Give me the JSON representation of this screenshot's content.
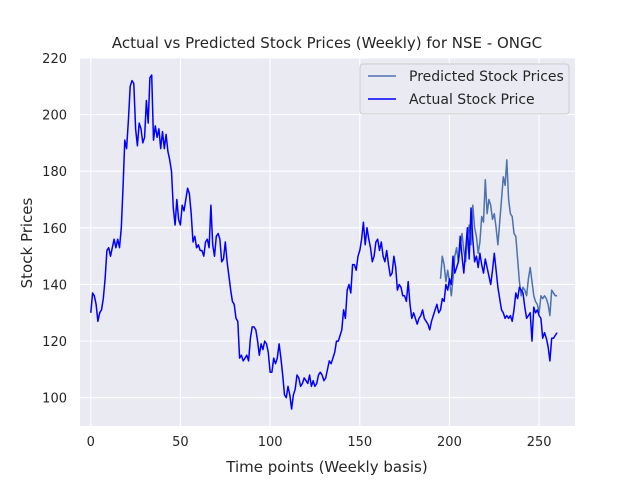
{
  "chart_data": {
    "type": "line",
    "title": "Actual vs Predicted Stock Prices (Weekly) for NSE - ONGC",
    "xlabel": "Time points (Weekly basis)",
    "ylabel": "Stock Prices",
    "xlim": [
      -6,
      270
    ],
    "ylim": [
      90,
      220
    ],
    "x_ticks": [
      0,
      50,
      100,
      150,
      200,
      250
    ],
    "y_ticks": [
      100,
      120,
      140,
      160,
      180,
      200,
      220
    ],
    "x_tick_labels": [
      "0",
      "50",
      "100",
      "150",
      "200",
      "250"
    ],
    "y_tick_labels": [
      "100",
      "120",
      "140",
      "160",
      "180",
      "200",
      "220"
    ],
    "grid": true,
    "legend_position": "top-right",
    "series": [
      {
        "name": "Predicted Stock Prices",
        "color": "#4c72b0",
        "points": [
          [
            195,
            142
          ],
          [
            196,
            150
          ],
          [
            197,
            147
          ],
          [
            198,
            141
          ],
          [
            199,
            145
          ],
          [
            200,
            141
          ],
          [
            201,
            136
          ],
          [
            202,
            142
          ],
          [
            203,
            150
          ],
          [
            204,
            153
          ],
          [
            205,
            148
          ],
          [
            206,
            153
          ],
          [
            207,
            158
          ],
          [
            208,
            152
          ],
          [
            209,
            148
          ],
          [
            210,
            156
          ],
          [
            211,
            161
          ],
          [
            212,
            154
          ],
          [
            213,
            168
          ],
          [
            214,
            160
          ],
          [
            215,
            157
          ],
          [
            216,
            151
          ],
          [
            217,
            155
          ],
          [
            218,
            164
          ],
          [
            219,
            162
          ],
          [
            220,
            177
          ],
          [
            221,
            165
          ],
          [
            222,
            170
          ],
          [
            223,
            168
          ],
          [
            224,
            163
          ],
          [
            225,
            165
          ],
          [
            226,
            160
          ],
          [
            227,
            154
          ],
          [
            228,
            162
          ],
          [
            229,
            170
          ],
          [
            230,
            178
          ],
          [
            231,
            175
          ],
          [
            232,
            184
          ],
          [
            233,
            170
          ],
          [
            234,
            165
          ],
          [
            235,
            164
          ],
          [
            236,
            158
          ],
          [
            237,
            157
          ],
          [
            238,
            149
          ],
          [
            239,
            141
          ],
          [
            240,
            136
          ],
          [
            241,
            139
          ],
          [
            242,
            138
          ],
          [
            243,
            136
          ],
          [
            244,
            142
          ],
          [
            245,
            146
          ],
          [
            246,
            141
          ],
          [
            247,
            136
          ],
          [
            248,
            134
          ],
          [
            249,
            133
          ],
          [
            250,
            130
          ],
          [
            251,
            136
          ],
          [
            252,
            135
          ],
          [
            253,
            136
          ],
          [
            254,
            135
          ],
          [
            255,
            133
          ],
          [
            256,
            129
          ],
          [
            257,
            138
          ],
          [
            258,
            137
          ],
          [
            259,
            136
          ],
          [
            260,
            136
          ]
        ]
      },
      {
        "name": "Actual Stock Price",
        "color": "#0000ff",
        "points": [
          [
            0,
            130
          ],
          [
            1,
            137
          ],
          [
            2,
            136
          ],
          [
            3,
            133
          ],
          [
            4,
            127
          ],
          [
            5,
            130
          ],
          [
            6,
            131
          ],
          [
            7,
            135
          ],
          [
            8,
            142
          ],
          [
            9,
            152
          ],
          [
            10,
            153
          ],
          [
            11,
            150
          ],
          [
            12,
            153
          ],
          [
            13,
            156
          ],
          [
            14,
            153
          ],
          [
            15,
            156
          ],
          [
            16,
            153
          ],
          [
            17,
            160
          ],
          [
            18,
            174
          ],
          [
            19,
            191
          ],
          [
            20,
            188
          ],
          [
            21,
            198
          ],
          [
            22,
            210
          ],
          [
            23,
            212
          ],
          [
            24,
            211
          ],
          [
            25,
            195
          ],
          [
            26,
            189
          ],
          [
            27,
            197
          ],
          [
            28,
            195
          ],
          [
            29,
            190
          ],
          [
            30,
            192
          ],
          [
            31,
            205
          ],
          [
            32,
            197
          ],
          [
            33,
            213
          ],
          [
            34,
            214
          ],
          [
            35,
            191
          ],
          [
            36,
            196
          ],
          [
            37,
            192
          ],
          [
            38,
            195
          ],
          [
            39,
            188
          ],
          [
            40,
            194
          ],
          [
            41,
            188
          ],
          [
            42,
            193
          ],
          [
            43,
            187
          ],
          [
            44,
            184
          ],
          [
            45,
            180
          ],
          [
            46,
            167
          ],
          [
            47,
            161
          ],
          [
            48,
            170
          ],
          [
            49,
            163
          ],
          [
            50,
            161
          ],
          [
            51,
            168
          ],
          [
            52,
            166
          ],
          [
            53,
            170
          ],
          [
            54,
            174
          ],
          [
            55,
            172
          ],
          [
            56,
            165
          ],
          [
            57,
            155
          ],
          [
            58,
            157
          ],
          [
            59,
            153
          ],
          [
            60,
            154
          ],
          [
            61,
            152
          ],
          [
            62,
            152
          ],
          [
            63,
            150
          ],
          [
            64,
            155
          ],
          [
            65,
            156
          ],
          [
            66,
            153
          ],
          [
            67,
            168
          ],
          [
            68,
            154
          ],
          [
            69,
            150
          ],
          [
            70,
            157
          ],
          [
            71,
            158
          ],
          [
            72,
            156
          ],
          [
            73,
            148
          ],
          [
            74,
            149
          ],
          [
            75,
            155
          ],
          [
            76,
            148
          ],
          [
            77,
            143
          ],
          [
            78,
            138
          ],
          [
            79,
            134
          ],
          [
            80,
            133
          ],
          [
            81,
            128
          ],
          [
            82,
            127
          ],
          [
            83,
            114
          ],
          [
            84,
            115
          ],
          [
            85,
            113
          ],
          [
            86,
            114
          ],
          [
            87,
            115
          ],
          [
            88,
            113
          ],
          [
            89,
            121
          ],
          [
            90,
            125
          ],
          [
            91,
            125
          ],
          [
            92,
            124
          ],
          [
            93,
            120
          ],
          [
            94,
            115
          ],
          [
            95,
            119
          ],
          [
            96,
            117
          ],
          [
            97,
            120
          ],
          [
            98,
            119
          ],
          [
            99,
            116
          ],
          [
            100,
            109
          ],
          [
            101,
            109
          ],
          [
            102,
            114
          ],
          [
            103,
            112
          ],
          [
            104,
            114
          ],
          [
            105,
            119
          ],
          [
            106,
            114
          ],
          [
            107,
            108
          ],
          [
            108,
            101
          ],
          [
            109,
            100
          ],
          [
            110,
            104
          ],
          [
            111,
            101
          ],
          [
            112,
            96
          ],
          [
            113,
            101
          ],
          [
            114,
            103
          ],
          [
            115,
            108
          ],
          [
            116,
            107
          ],
          [
            117,
            104
          ],
          [
            118,
            105
          ],
          [
            119,
            107
          ],
          [
            120,
            106
          ],
          [
            121,
            105
          ],
          [
            122,
            108
          ],
          [
            123,
            104
          ],
          [
            124,
            106
          ],
          [
            125,
            104
          ],
          [
            126,
            105
          ],
          [
            127,
            108
          ],
          [
            128,
            109
          ],
          [
            129,
            108
          ],
          [
            130,
            106
          ],
          [
            131,
            107
          ],
          [
            132,
            110
          ],
          [
            133,
            113
          ],
          [
            134,
            112
          ],
          [
            135,
            114
          ],
          [
            136,
            116
          ],
          [
            137,
            120
          ],
          [
            138,
            120
          ],
          [
            139,
            122
          ],
          [
            140,
            124
          ],
          [
            141,
            131
          ],
          [
            142,
            128
          ],
          [
            143,
            138
          ],
          [
            144,
            140
          ],
          [
            145,
            137
          ],
          [
            146,
            147
          ],
          [
            147,
            147
          ],
          [
            148,
            145
          ],
          [
            149,
            150
          ],
          [
            150,
            152
          ],
          [
            151,
            156
          ],
          [
            152,
            162
          ],
          [
            153,
            154
          ],
          [
            154,
            160
          ],
          [
            155,
            156
          ],
          [
            156,
            153
          ],
          [
            157,
            148
          ],
          [
            158,
            150
          ],
          [
            159,
            155
          ],
          [
            160,
            156
          ],
          [
            161,
            152
          ],
          [
            162,
            155
          ],
          [
            163,
            150
          ],
          [
            164,
            148
          ],
          [
            165,
            152
          ],
          [
            166,
            147
          ],
          [
            167,
            143
          ],
          [
            168,
            144
          ],
          [
            169,
            150
          ],
          [
            170,
            146
          ],
          [
            171,
            138
          ],
          [
            172,
            140
          ],
          [
            173,
            139
          ],
          [
            174,
            136
          ],
          [
            175,
            136
          ],
          [
            176,
            134
          ],
          [
            177,
            141
          ],
          [
            178,
            133
          ],
          [
            179,
            128
          ],
          [
            180,
            130
          ],
          [
            181,
            128
          ],
          [
            182,
            126
          ],
          [
            183,
            128
          ],
          [
            184,
            129
          ],
          [
            185,
            131
          ],
          [
            186,
            128
          ],
          [
            187,
            127
          ],
          [
            188,
            126
          ],
          [
            189,
            124
          ],
          [
            190,
            127
          ],
          [
            191,
            129
          ],
          [
            192,
            131
          ],
          [
            193,
            133
          ],
          [
            194,
            130
          ],
          [
            195,
            131
          ],
          [
            196,
            135
          ],
          [
            197,
            134
          ],
          [
            198,
            140
          ],
          [
            199,
            138
          ],
          [
            200,
            142
          ],
          [
            201,
            140
          ],
          [
            202,
            150
          ],
          [
            203,
            144
          ],
          [
            204,
            146
          ],
          [
            205,
            148
          ],
          [
            206,
            157
          ],
          [
            207,
            150
          ],
          [
            208,
            144
          ],
          [
            209,
            152
          ],
          [
            210,
            160
          ],
          [
            211,
            149
          ],
          [
            212,
            167
          ],
          [
            213,
            156
          ],
          [
            214,
            148
          ],
          [
            215,
            150
          ],
          [
            216,
            146
          ],
          [
            217,
            151
          ],
          [
            218,
            147
          ],
          [
            219,
            144
          ],
          [
            220,
            149
          ],
          [
            221,
            146
          ],
          [
            222,
            143
          ],
          [
            223,
            140
          ],
          [
            224,
            145
          ],
          [
            225,
            151
          ],
          [
            226,
            145
          ],
          [
            227,
            139
          ],
          [
            228,
            135
          ],
          [
            229,
            131
          ],
          [
            230,
            130
          ],
          [
            231,
            128
          ],
          [
            232,
            129
          ],
          [
            233,
            128
          ],
          [
            234,
            129
          ],
          [
            235,
            127
          ],
          [
            236,
            131
          ],
          [
            237,
            137
          ],
          [
            238,
            135
          ],
          [
            239,
            139
          ],
          [
            240,
            138
          ],
          [
            241,
            137
          ],
          [
            242,
            132
          ],
          [
            243,
            128
          ],
          [
            244,
            129
          ],
          [
            245,
            130
          ],
          [
            246,
            120
          ],
          [
            247,
            132
          ],
          [
            248,
            130
          ],
          [
            249,
            131
          ],
          [
            250,
            129
          ],
          [
            251,
            128
          ],
          [
            252,
            121
          ],
          [
            253,
            123
          ],
          [
            254,
            121
          ],
          [
            255,
            118
          ],
          [
            256,
            113
          ],
          [
            257,
            121
          ],
          [
            258,
            121
          ],
          [
            259,
            122
          ],
          [
            260,
            123
          ]
        ]
      }
    ]
  }
}
